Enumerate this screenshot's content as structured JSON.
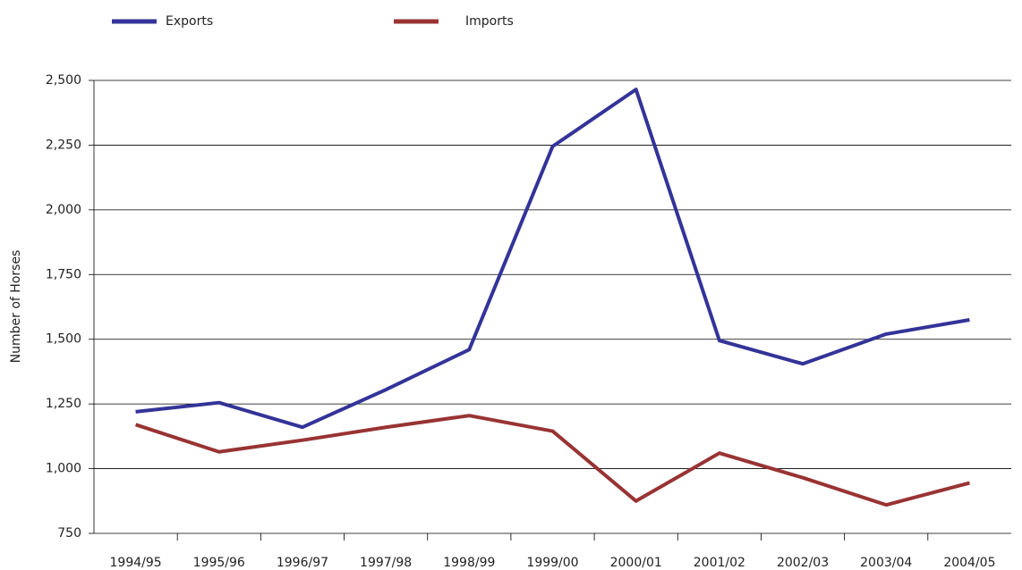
{
  "chart_data": {
    "type": "line",
    "y_label": "Number of Horses",
    "categories": [
      "1994/95",
      "1995/96",
      "1996/97",
      "1997/98",
      "1998/99",
      "1999/00",
      "2000/01",
      "2001/02",
      "2002/03",
      "2003/04",
      "2004/05"
    ],
    "series": [
      {
        "name": "Exports",
        "color": "#333399",
        "values": [
          1220,
          1255,
          1160,
          1305,
          1460,
          2245,
          2465,
          1495,
          1405,
          1520,
          1575
        ]
      },
      {
        "name": "Imports",
        "color": "#993333",
        "values": [
          1170,
          1065,
          1110,
          1160,
          1205,
          1145,
          875,
          1060,
          965,
          860,
          945
        ]
      }
    ],
    "ylim": [
      750,
      2500
    ],
    "yticks": [
      {
        "value": 750,
        "label": "750"
      },
      {
        "value": 1000,
        "label": "1,000"
      },
      {
        "value": 1250,
        "label": "1,250"
      },
      {
        "value": 1500,
        "label": "1,500"
      },
      {
        "value": 1750,
        "label": "1,750"
      },
      {
        "value": 2000,
        "label": "2,000"
      },
      {
        "value": 2250,
        "label": "2,250"
      },
      {
        "value": 2500,
        "label": "2,500"
      }
    ],
    "grid": true
  }
}
